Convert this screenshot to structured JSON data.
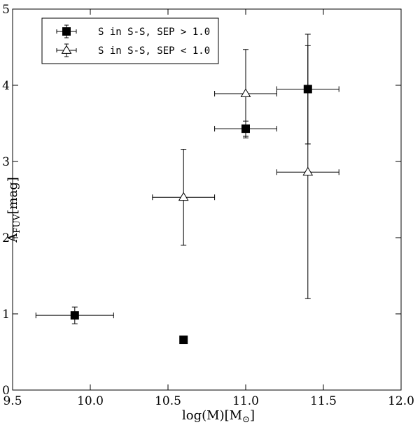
{
  "chart_data": {
    "type": "scatter",
    "xlabel": "log(M)[M",
    "xlabel_sub": "⊙",
    "xlabel_close": "]",
    "ylabel": "A",
    "ylabel_sub": "FUV",
    "ylabel_tail": "[mag]",
    "xlim": [
      9.5,
      12.0
    ],
    "ylim": [
      0,
      5
    ],
    "x_ticks": [
      "9.5",
      "10.0",
      "10.5",
      "11.0",
      "11.5",
      "12.0"
    ],
    "y_ticks": [
      "0",
      "1",
      "2",
      "3",
      "4",
      "5"
    ],
    "legend_position": "top-left",
    "grid": false,
    "series": [
      {
        "name": "S in S-S, SEP > 1.0",
        "marker": "filled-square",
        "color": "#000000",
        "points": [
          {
            "x": 9.9,
            "y": 0.98,
            "xerr": 0.25,
            "yerr": 0.11
          },
          {
            "x": 10.6,
            "y": 0.66
          },
          {
            "x": 11.0,
            "y": 3.43,
            "xerr": 0.2,
            "yerr": 0.1
          },
          {
            "x": 11.4,
            "y": 3.95,
            "xerr": 0.2,
            "yerr": 0.72
          }
        ]
      },
      {
        "name": "S in S-S, SEP < 1.0",
        "marker": "open-triangle",
        "color": "#000000",
        "points": [
          {
            "x": 10.6,
            "y": 2.53,
            "xerr": 0.2,
            "yerr": 0.63
          },
          {
            "x": 11.0,
            "y": 3.89,
            "xerr": 0.2,
            "yerr": 0.58
          },
          {
            "x": 11.4,
            "y": 2.86,
            "xerr": 0.2,
            "yerr": 1.66
          }
        ]
      }
    ]
  }
}
